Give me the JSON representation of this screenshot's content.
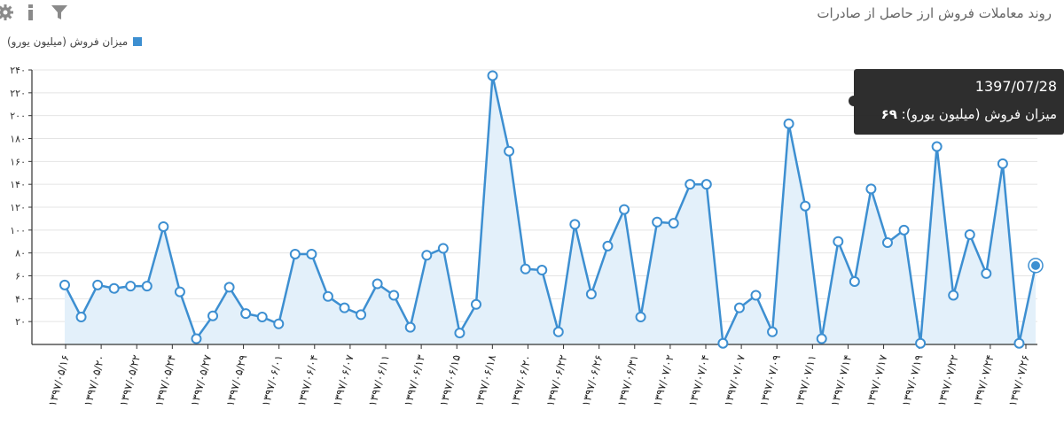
{
  "title": "روند معاملات فروش ارز حاصل از صادرات",
  "colors": {
    "series": "#3d8fd1",
    "fill": "#e3f0fa",
    "grid": "#e4e4e4",
    "axis": "#333333"
  },
  "toolbar": {
    "icons": [
      "settings-icon",
      "info-icon",
      "filter-icon"
    ]
  },
  "tooltip": {
    "date": "1397/07/28",
    "series_label": "میزان فروش (میلیون یورو)",
    "value": "۶۹"
  },
  "chart_data": {
    "type": "area",
    "title": "روند معاملات فروش ارز حاصل از صادرات",
    "xlabel": "",
    "ylabel": "",
    "legend": "top-left",
    "grid": true,
    "ylim": [
      0,
      240
    ],
    "yticks": [
      20,
      40,
      60,
      80,
      100,
      120,
      140,
      160,
      180,
      200,
      220,
      240
    ],
    "ytick_labels": [
      "۲۰",
      "۴۰",
      "۶۰",
      "۸۰",
      "۱۰۰",
      "۱۲۰",
      "۱۴۰",
      "۱۶۰",
      "۱۸۰",
      "۲۰۰",
      "۲۲۰",
      "۲۴۰"
    ],
    "xtick_labels": [
      "۱۳۹۷/۰۵/۱۶",
      "۱۳۹۷/۰۵/۲۰",
      "۱۳۹۷/۰۵/۲۲",
      "۱۳۹۷/۰۵/۲۴",
      "۱۳۹۷/۰۵/۲۷",
      "۱۳۹۷/۰۵/۲۹",
      "۱۳۹۷/۰۶/۰۱",
      "۱۳۹۷/۰۶/۰۴",
      "۱۳۹۷/۰۶/۰۷",
      "۱۳۹۷/۰۶/۱۱",
      "۱۳۹۷/۰۶/۱۳",
      "۱۳۹۷/۰۶/۱۵",
      "۱۳۹۷/۰۶/۱۸",
      "۱۳۹۷/۰۶/۲۰",
      "۱۳۹۷/۰۶/۲۲",
      "۱۳۹۷/۰۶/۲۶",
      "۱۳۹۷/۰۶/۳۱",
      "۱۳۹۷/۰۷/۰۲",
      "۱۳۹۷/۰۷/۰۴",
      "۱۳۹۷/۰۷/۰۷",
      "۱۳۹۷/۰۷/۰۹",
      "۱۳۹۷/۰۷/۱۱",
      "۱۳۹۷/۰۷/۱۴",
      "۱۳۹۷/۰۷/۱۷",
      "۱۳۹۷/۰۷/۱۹",
      "۱۳۹۷/۰۷/۲۲",
      "۱۳۹۷/۰۷/۲۴",
      "۱۳۹۷/۰۷/۲۶"
    ],
    "series": [
      {
        "name": "میزان فروش (میلیون یورو)",
        "values": [
          52,
          24,
          52,
          49,
          51,
          51,
          103,
          46,
          5,
          25,
          50,
          27,
          24,
          18,
          79,
          79,
          42,
          32,
          26,
          53,
          43,
          15,
          78,
          84,
          10,
          35,
          235,
          169,
          66,
          65,
          11,
          105,
          44,
          86,
          118,
          24,
          107,
          106,
          140,
          140,
          1,
          32,
          43,
          11,
          193,
          121,
          5,
          90,
          55,
          136,
          89,
          100,
          1,
          173,
          43,
          96,
          62,
          158,
          1,
          69
        ]
      }
    ]
  }
}
